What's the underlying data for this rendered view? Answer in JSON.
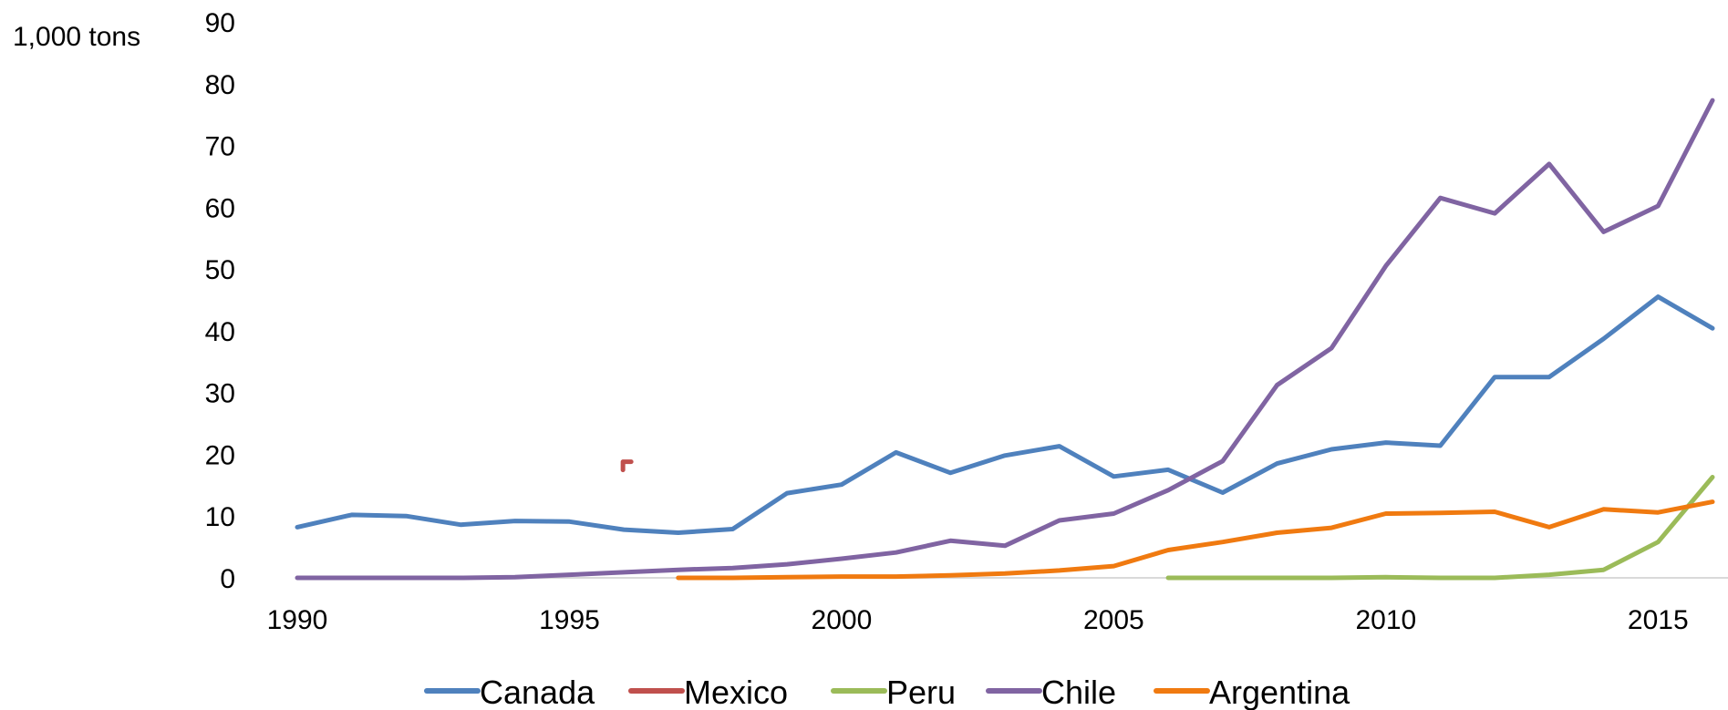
{
  "chart_data": {
    "type": "line",
    "title": "",
    "xlabel": "",
    "ylabel": "1,000 tons",
    "xlim": [
      1990,
      2016
    ],
    "ylim": [
      0,
      90
    ],
    "x_ticks": [
      1990,
      1995,
      2000,
      2005,
      2010,
      2015
    ],
    "y_ticks": [
      0,
      10,
      20,
      30,
      40,
      50,
      60,
      70,
      80,
      90
    ],
    "grid": false,
    "legend_position": "bottom",
    "x": [
      1990,
      1991,
      1992,
      1993,
      1994,
      1995,
      1996,
      1997,
      1998,
      1999,
      2000,
      2001,
      2002,
      2003,
      2004,
      2005,
      2006,
      2007,
      2008,
      2009,
      2010,
      2011,
      2012,
      2013,
      2014,
      2015,
      2016
    ],
    "series": [
      {
        "name": "Canada",
        "color": "#4f81bd",
        "values": [
          8.2,
          10.2,
          10.0,
          8.6,
          9.2,
          9.1,
          7.8,
          7.3,
          7.9,
          13.7,
          15.1,
          20.3,
          17.0,
          19.8,
          21.3,
          16.4,
          17.5,
          13.8,
          18.5,
          20.8,
          21.9,
          21.4,
          32.5,
          32.5,
          38.7,
          45.5,
          40.4
        ]
      },
      {
        "name": "Mexico",
        "color": "#c0504d",
        "values": [
          null,
          null,
          null,
          null,
          null,
          null,
          18.5,
          null,
          null,
          null,
          null,
          null,
          null,
          null,
          null,
          null,
          null,
          null,
          null,
          null,
          null,
          null,
          null,
          null,
          null,
          null,
          null
        ]
      },
      {
        "name": "Peru",
        "color": "#9bbb59",
        "values": [
          null,
          null,
          null,
          null,
          null,
          null,
          null,
          null,
          null,
          null,
          null,
          null,
          null,
          null,
          null,
          null,
          0.0,
          0.0,
          0.0,
          0.0,
          0.1,
          0.0,
          0.0,
          0.5,
          1.3,
          5.8,
          16.3
        ]
      },
      {
        "name": "Chile",
        "color": "#8064a2",
        "values": [
          0.0,
          0.0,
          0.0,
          0.0,
          0.1,
          0.5,
          0.9,
          1.3,
          1.6,
          2.2,
          3.1,
          4.1,
          6.0,
          5.2,
          9.3,
          10.4,
          14.2,
          18.9,
          31.2,
          37.2,
          50.5,
          61.5,
          59.0,
          67.0,
          56.0,
          60.2,
          77.3
        ]
      },
      {
        "name": "Argentina",
        "color": "#f07a10",
        "values": [
          null,
          null,
          null,
          null,
          null,
          null,
          null,
          0.0,
          0.0,
          0.1,
          0.2,
          0.2,
          0.4,
          0.7,
          1.2,
          1.9,
          4.5,
          5.8,
          7.3,
          8.1,
          10.4,
          10.5,
          10.7,
          8.2,
          11.1,
          10.6,
          12.3
        ]
      }
    ]
  }
}
